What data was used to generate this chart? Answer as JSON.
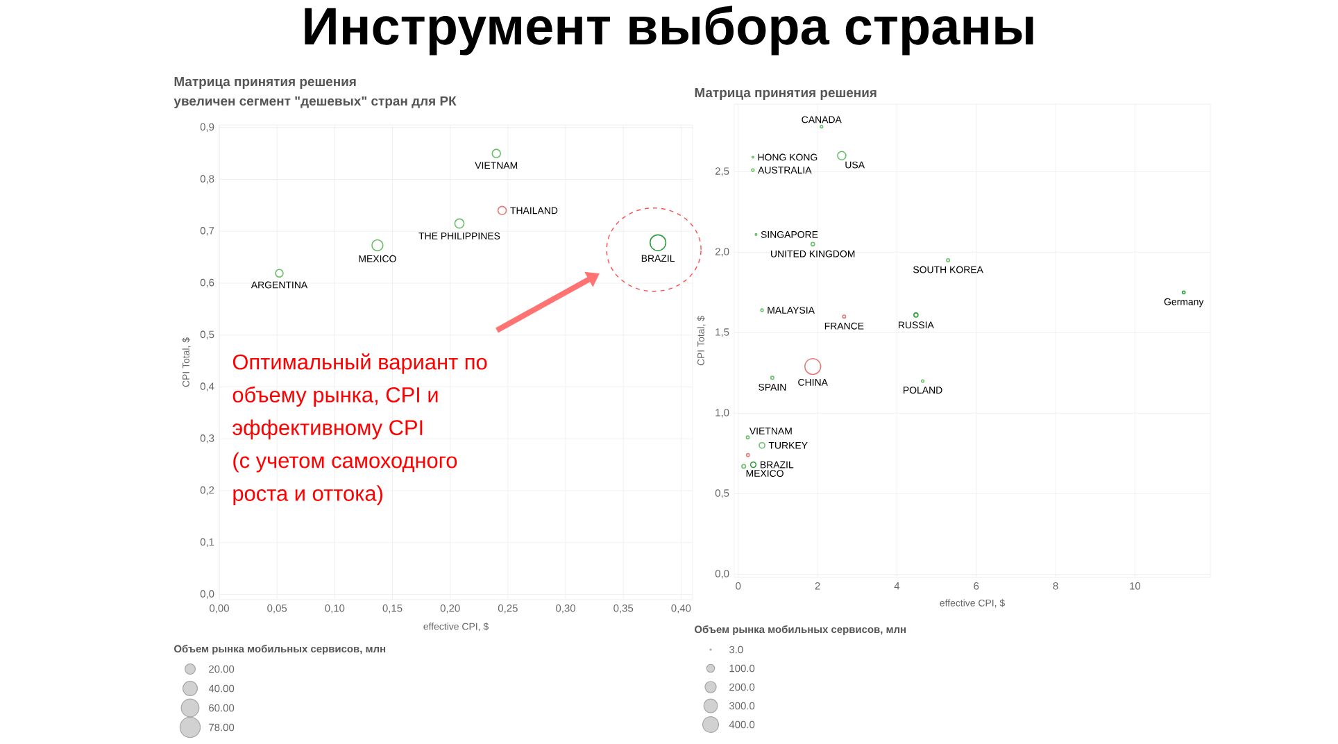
{
  "chart_data": [
    {
      "type": "bubble",
      "title": "Матрица принятия решения",
      "subtitle": "увеличен сегмент \"дешевых\" стран для РК",
      "xlabel": "effective CPI, $",
      "ylabel": "CPI Total, $",
      "xlim": [
        0,
        0.41
      ],
      "ylim": [
        -0.01,
        0.905
      ],
      "xticks": [
        {
          "value": 0,
          "label": "0,00"
        },
        {
          "value": 0.05,
          "label": "0,05"
        },
        {
          "value": 0.1,
          "label": "0,10"
        },
        {
          "value": 0.15,
          "label": "0,15"
        },
        {
          "value": 0.2,
          "label": "0,20"
        },
        {
          "value": 0.25,
          "label": "0,25"
        },
        {
          "value": 0.3,
          "label": "0,30"
        },
        {
          "value": 0.35,
          "label": "0,35"
        },
        {
          "value": 0.4,
          "label": "0,40"
        }
      ],
      "yticks": [
        {
          "value": 0,
          "label": "0,0"
        },
        {
          "value": 0.1,
          "label": "0,1"
        },
        {
          "value": 0.2,
          "label": "0,2"
        },
        {
          "value": 0.3,
          "label": "0,3"
        },
        {
          "value": 0.4,
          "label": "0,4"
        },
        {
          "value": 0.5,
          "label": "0,5"
        },
        {
          "value": 0.6,
          "label": "0,6"
        },
        {
          "value": 0.7,
          "label": "0,7"
        },
        {
          "value": 0.8,
          "label": "0,8"
        },
        {
          "value": 0.9,
          "label": "0,9"
        }
      ],
      "grid": true,
      "marker": "circle",
      "legend_title": "Объем рынка мобильных сервисов, млн",
      "size_legend": [
        {
          "value": 20,
          "label": "20.00"
        },
        {
          "value": 40,
          "label": "40.00"
        },
        {
          "value": 60,
          "label": "60.00"
        },
        {
          "value": 78,
          "label": "78.00"
        }
      ],
      "annotations": [
        "Инструмент выбора страны",
        "Оптимальный вариант по",
        "объему рынка, CPI и",
        "эффективному CPI",
        "(с учетом самоходного",
        "роста и оттока)"
      ],
      "series": [
        {
          "name": "VIETNAM",
          "color": "#6abf69",
          "x": [
            0.24
          ],
          "values": [
            0.85
          ],
          "sizes": [
            13
          ]
        },
        {
          "name": "THAILAND",
          "color": "#e8797a",
          "x": [
            0.245
          ],
          "values": [
            0.74
          ],
          "sizes": [
            13
          ]
        },
        {
          "name": "THE PHILIPPINES",
          "color": "#6abf69",
          "x": [
            0.208
          ],
          "values": [
            0.715
          ],
          "sizes": [
            16
          ]
        },
        {
          "name": "MEXICO",
          "color": "#6abf69",
          "x": [
            0.137
          ],
          "values": [
            0.673
          ],
          "sizes": [
            23
          ]
        },
        {
          "name": "ARGENTINA",
          "color": "#6abf69",
          "x": [
            0.052
          ],
          "values": [
            0.619
          ],
          "sizes": [
            11
          ]
        },
        {
          "name": "BRAZIL",
          "color": "#2e9e3a",
          "x": [
            0.38
          ],
          "values": [
            0.678
          ],
          "sizes": [
            47
          ]
        }
      ]
    },
    {
      "type": "bubble",
      "title": "Матрица принятия решения",
      "xlabel": "effective CPI, $",
      "ylabel": "CPI Total, $",
      "xlim": [
        -0.1,
        11.9
      ],
      "ylim": [
        -0.02,
        2.92
      ],
      "xticks": [
        0,
        2,
        4,
        6,
        8,
        10
      ],
      "yticks": [
        {
          "value": 0,
          "label": "0,0"
        },
        {
          "value": 0.5,
          "label": "0,5"
        },
        {
          "value": 1,
          "label": "1,0"
        },
        {
          "value": 1.5,
          "label": "1,5"
        },
        {
          "value": 2,
          "label": "2,0"
        },
        {
          "value": 2.5,
          "label": "2,5"
        }
      ],
      "grid": true,
      "marker": "circle",
      "legend_title": "Объем рынка мобильных сервисов, млн",
      "size_legend": [
        {
          "value": 3,
          "label": "3.0"
        },
        {
          "value": 100,
          "label": "100.0"
        },
        {
          "value": 200,
          "label": "200.0"
        },
        {
          "value": 300,
          "label": "300.0"
        },
        {
          "value": 400,
          "label": "400.0"
        }
      ],
      "series": [
        {
          "name": "CANADA",
          "color": "#6abf69",
          "x": [
            2.1
          ],
          "values": [
            2.78
          ],
          "sizes": [
            10
          ]
        },
        {
          "name": "HONG KONG",
          "color": "#6abf69",
          "x": [
            0.37
          ],
          "values": [
            2.59
          ],
          "sizes": [
            5
          ]
        },
        {
          "name": "USA",
          "color": "#6abf69",
          "x": [
            2.61
          ],
          "values": [
            2.6
          ],
          "sizes": [
            110
          ]
        },
        {
          "name": "AUSTRALIA",
          "color": "#6abf69",
          "x": [
            0.37
          ],
          "values": [
            2.51
          ],
          "sizes": [
            10
          ]
        },
        {
          "name": "SINGAPORE",
          "color": "#6abf69",
          "x": [
            0.45
          ],
          "values": [
            2.11
          ],
          "sizes": [
            5
          ]
        },
        {
          "name": "UNITED KINGDOM",
          "color": "#6abf69",
          "x": [
            1.88
          ],
          "values": [
            2.05
          ],
          "sizes": [
            20
          ]
        },
        {
          "name": "SOUTH KOREA",
          "color": "#6abf69",
          "x": [
            5.29
          ],
          "values": [
            1.95
          ],
          "sizes": [
            15
          ]
        },
        {
          "name": "MALAYSIA",
          "color": "#6abf69",
          "x": [
            0.6
          ],
          "values": [
            1.64
          ],
          "sizes": [
            10
          ]
        },
        {
          "name": "FRANCE",
          "color": "#e8797a",
          "x": [
            2.67
          ],
          "values": [
            1.6
          ],
          "sizes": [
            15
          ]
        },
        {
          "name": "RUSSIA",
          "color": "#2e9e3a",
          "x": [
            4.48
          ],
          "values": [
            1.61
          ],
          "sizes": [
            28
          ]
        },
        {
          "name": "Germany",
          "color": "#2e9e3a",
          "x": [
            11.23
          ],
          "values": [
            1.75
          ],
          "sizes": [
            12
          ]
        },
        {
          "name": "CHINA",
          "color": "#e8797a",
          "x": [
            1.88
          ],
          "values": [
            1.29
          ],
          "sizes": [
            400
          ]
        },
        {
          "name": "SPAIN",
          "color": "#6abf69",
          "x": [
            0.86
          ],
          "values": [
            1.22
          ],
          "sizes": [
            15
          ]
        },
        {
          "name": "POLAND",
          "color": "#6abf69",
          "x": [
            4.65
          ],
          "values": [
            1.2
          ],
          "sizes": [
            10
          ]
        },
        {
          "name": "VIETNAM",
          "color": "#6abf69",
          "x": [
            0.24
          ],
          "values": [
            0.85
          ],
          "sizes": [
            13
          ]
        },
        {
          "name": "TURKEY",
          "color": "#6abf69",
          "x": [
            0.6
          ],
          "values": [
            0.8
          ],
          "sizes": [
            50
          ]
        },
        {
          "name": "BRAZIL",
          "color": "#2e9e3a",
          "x": [
            0.38
          ],
          "values": [
            0.68
          ],
          "sizes": [
            47
          ]
        },
        {
          "name": "MEXICO",
          "color": "#6abf69",
          "x": [
            0.14
          ],
          "values": [
            0.67
          ],
          "sizes": [
            23
          ]
        },
        {
          "color": "#e8797a",
          "x": [
            0.245
          ],
          "values": [
            0.74
          ],
          "sizes": [
            13
          ]
        }
      ]
    }
  ]
}
